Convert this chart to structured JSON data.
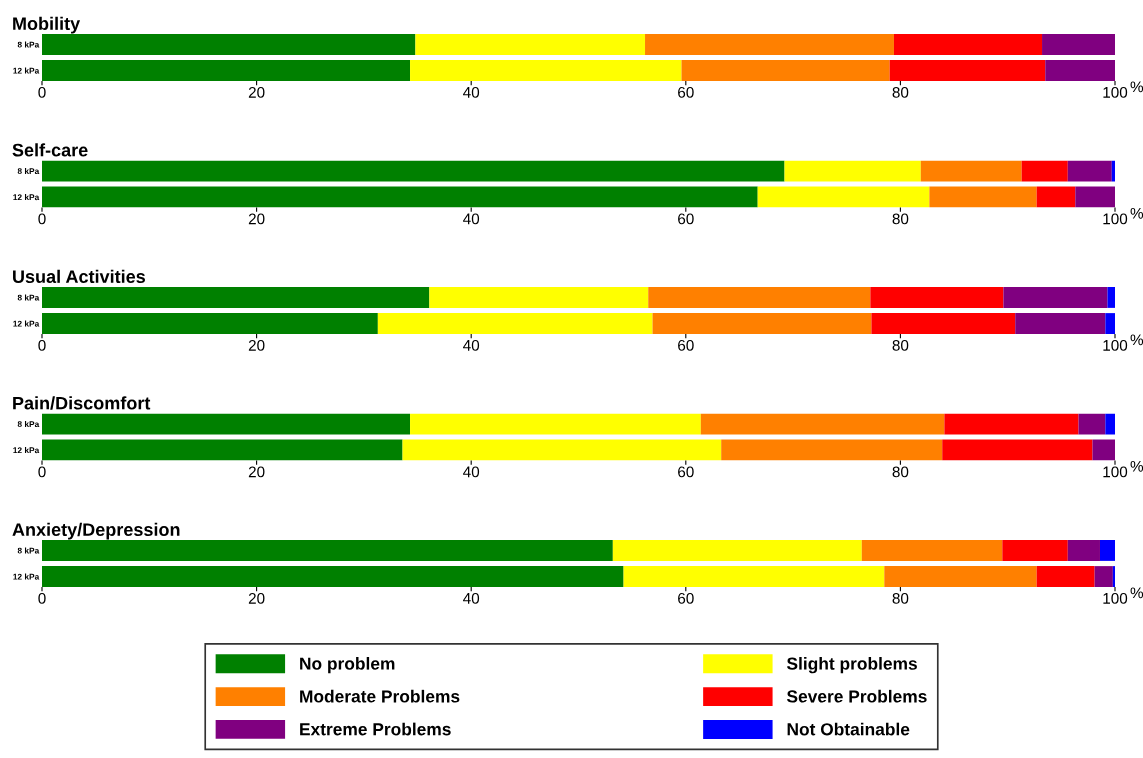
{
  "chart_data": [
    {
      "type": "bar",
      "title": "Mobility",
      "orientation": "horizontal",
      "stacked": true,
      "categories": [
        "8 kPa",
        "12 kPa"
      ],
      "xlabel": "%",
      "xlim": [
        0,
        100
      ],
      "xticks": [
        0,
        20,
        40,
        60,
        80,
        100
      ],
      "grid": false,
      "series": [
        {
          "color": "#008000",
          "values": [
            34.8,
            34.3
          ]
        },
        {
          "color": "#ffff00",
          "values": [
            21.4,
            25.3
          ]
        },
        {
          "color": "#ff8000",
          "values": [
            23.2,
            19.4
          ]
        },
        {
          "color": "#ff0000",
          "values": [
            13.8,
            14.5
          ]
        },
        {
          "color": "#800080",
          "values": [
            6.8,
            6.5
          ]
        },
        {
          "color": "#0000ff",
          "values": [
            0,
            0
          ]
        }
      ]
    },
    {
      "type": "bar",
      "title": "Self-care",
      "orientation": "horizontal",
      "stacked": true,
      "categories": [
        "8 kPa",
        "12 kPa"
      ],
      "xlabel": "%",
      "xlim": [
        0,
        100
      ],
      "xticks": [
        0,
        20,
        40,
        60,
        80,
        100
      ],
      "grid": false,
      "series": [
        {
          "color": "#008000",
          "values": [
            69.2,
            66.7
          ]
        },
        {
          "color": "#ffff00",
          "values": [
            12.7,
            16.0
          ]
        },
        {
          "color": "#ff8000",
          "values": [
            9.4,
            10.0
          ]
        },
        {
          "color": "#ff0000",
          "values": [
            4.3,
            3.6
          ]
        },
        {
          "color": "#800080",
          "values": [
            4.1,
            3.7
          ]
        },
        {
          "color": "#0000ff",
          "values": [
            0.3,
            0
          ]
        }
      ]
    },
    {
      "type": "bar",
      "title": "Usual Activities",
      "orientation": "horizontal",
      "stacked": true,
      "categories": [
        "8 kPa",
        "12 kPa"
      ],
      "xlabel": "%",
      "xlim": [
        0,
        100
      ],
      "xticks": [
        0,
        20,
        40,
        60,
        80,
        100
      ],
      "grid": false,
      "series": [
        {
          "color": "#008000",
          "values": [
            36.1,
            31.3
          ]
        },
        {
          "color": "#ffff00",
          "values": [
            20.4,
            25.6
          ]
        },
        {
          "color": "#ff8000",
          "values": [
            20.7,
            20.4
          ]
        },
        {
          "color": "#ff0000",
          "values": [
            12.4,
            13.4
          ]
        },
        {
          "color": "#800080",
          "values": [
            9.7,
            8.4
          ]
        },
        {
          "color": "#0000ff",
          "values": [
            0.7,
            0.9
          ]
        }
      ]
    },
    {
      "type": "bar",
      "title": "Pain/Discomfort",
      "orientation": "horizontal",
      "stacked": true,
      "categories": [
        "8 kPa",
        "12 kPa"
      ],
      "xlabel": "%",
      "xlim": [
        0,
        100
      ],
      "xticks": [
        0,
        20,
        40,
        60,
        80,
        100
      ],
      "grid": false,
      "series": [
        {
          "color": "#008000",
          "values": [
            34.3,
            33.6
          ]
        },
        {
          "color": "#ffff00",
          "values": [
            27.1,
            29.7
          ]
        },
        {
          "color": "#ff8000",
          "values": [
            22.7,
            20.6
          ]
        },
        {
          "color": "#ff0000",
          "values": [
            12.5,
            14.0
          ]
        },
        {
          "color": "#800080",
          "values": [
            2.5,
            2.1
          ]
        },
        {
          "color": "#0000ff",
          "values": [
            0.9,
            0
          ]
        }
      ]
    },
    {
      "type": "bar",
      "title": "Anxiety/Depression",
      "orientation": "horizontal",
      "stacked": true,
      "categories": [
        "8 kPa",
        "12 kPa"
      ],
      "xlabel": "%",
      "xlim": [
        0,
        100
      ],
      "xticks": [
        0,
        20,
        40,
        60,
        80,
        100
      ],
      "grid": false,
      "legend": "bottom",
      "series": [
        {
          "name": "No problem",
          "color": "#008000",
          "values": [
            53.2,
            54.2
          ]
        },
        {
          "name": "Slight problems",
          "color": "#ffff00",
          "values": [
            23.2,
            24.3
          ]
        },
        {
          "name": "Moderate Problems",
          "color": "#ff8000",
          "values": [
            13.1,
            14.2
          ]
        },
        {
          "name": "Severe Problems",
          "color": "#ff0000",
          "values": [
            6.1,
            5.4
          ]
        },
        {
          "name": "Extreme Problems",
          "color": "#800080",
          "values": [
            3.0,
            1.7
          ]
        },
        {
          "name": "Not Obtainable",
          "color": "#0000ff",
          "values": [
            1.4,
            0.2
          ]
        }
      ]
    }
  ]
}
